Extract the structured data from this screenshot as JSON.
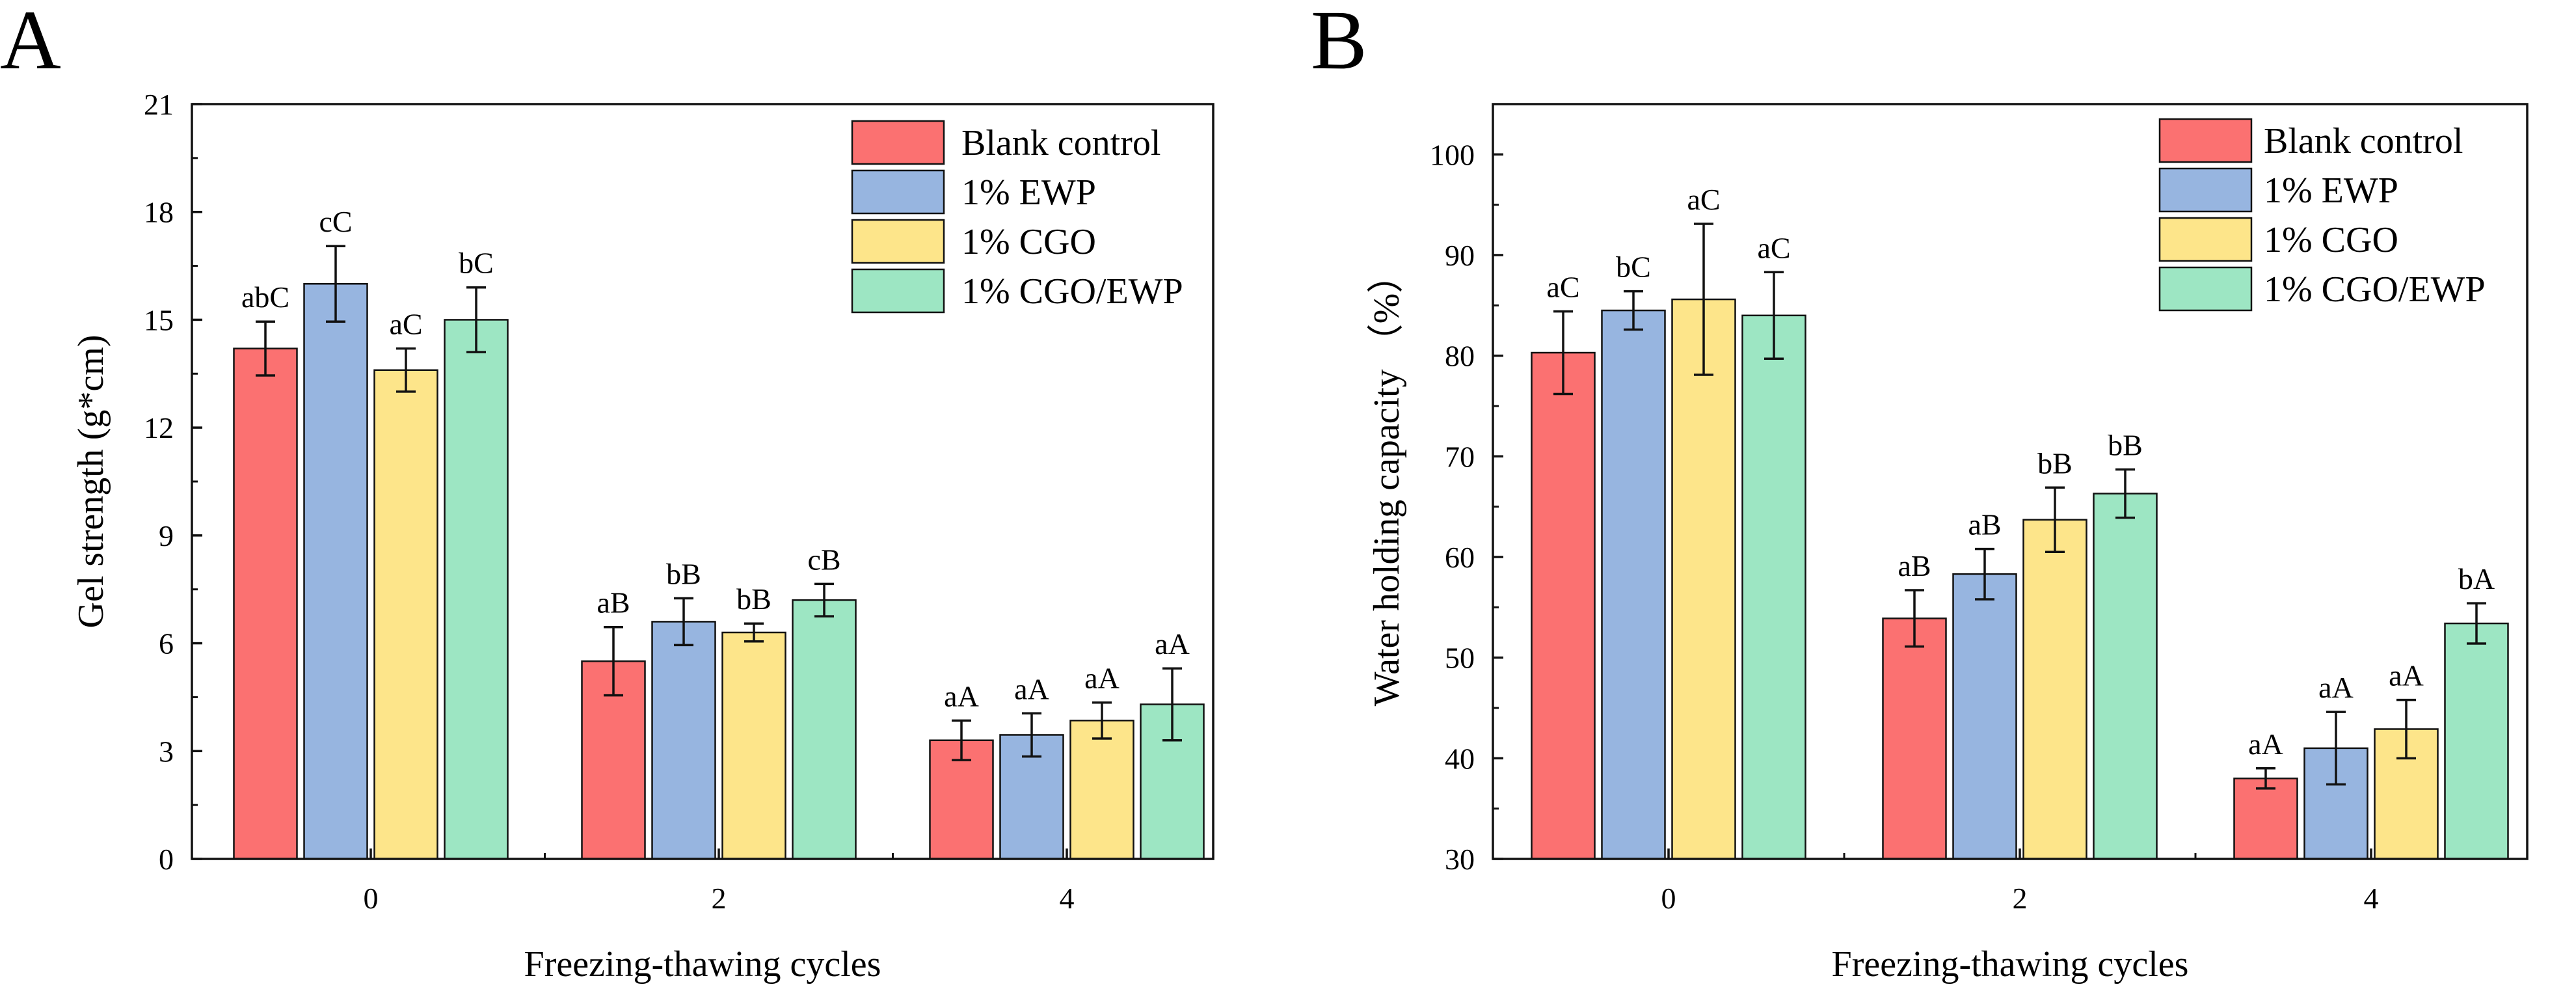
{
  "colors": {
    "Blank control": "#fb7171",
    "1% EWP": "#97b5e0",
    "1% CGO": "#fde58a",
    "1% CGO/EWP": "#9de6c3"
  },
  "chart_data": [
    {
      "panel": "A",
      "type": "bar",
      "xlabel": "Freezing-thawing cycles",
      "ylabel": "Gel strength (g*cm)",
      "categories": [
        "0",
        "2",
        "4"
      ],
      "ylim": [
        0,
        21
      ],
      "yticks": [
        0,
        3,
        6,
        9,
        12,
        15,
        18,
        21
      ],
      "legend_position": "top-right",
      "series": [
        {
          "name": "Blank control",
          "values": [
            14.2,
            5.5,
            3.3
          ],
          "errors": [
            0.75,
            0.95,
            0.55
          ],
          "labels": [
            "abC",
            "aB",
            "aA"
          ]
        },
        {
          "name": "1% EWP",
          "values": [
            16.0,
            6.6,
            3.45
          ],
          "errors": [
            1.05,
            0.65,
            0.6
          ],
          "labels": [
            "cC",
            "bB",
            "aA"
          ]
        },
        {
          "name": "1% CGO",
          "values": [
            13.6,
            6.3,
            3.85
          ],
          "errors": [
            0.6,
            0.25,
            0.5
          ],
          "labels": [
            "aC",
            "bB",
            "aA"
          ]
        },
        {
          "name": "1% CGO/EWP",
          "values": [
            15.0,
            7.2,
            4.3
          ],
          "errors": [
            0.9,
            0.45,
            1.0
          ],
          "labels": [
            "bC",
            "cB",
            "aA"
          ]
        }
      ]
    },
    {
      "panel": "B",
      "type": "bar",
      "xlabel": "Freezing-thawing cycles",
      "ylabel": "Water holding capacity （%）",
      "categories": [
        "0",
        "2",
        "4"
      ],
      "ylim": [
        30,
        105
      ],
      "yticks": [
        30,
        40,
        50,
        60,
        70,
        80,
        90,
        100
      ],
      "legend_position": "top-right",
      "series": [
        {
          "name": "Blank control",
          "values": [
            80.3,
            53.9,
            38.0
          ],
          "errors": [
            4.1,
            2.8,
            1.0
          ],
          "labels": [
            "aC",
            "aB",
            "aA"
          ]
        },
        {
          "name": "1% EWP",
          "values": [
            84.5,
            58.3,
            41.0
          ],
          "errors": [
            1.9,
            2.5,
            3.6
          ],
          "labels": [
            "bC",
            "aB",
            "aA"
          ]
        },
        {
          "name": "1% CGO",
          "values": [
            85.6,
            63.7,
            42.9
          ],
          "errors": [
            7.5,
            3.2,
            2.9
          ],
          "labels": [
            "aC",
            "bB",
            "aA"
          ]
        },
        {
          "name": "1% CGO/EWP",
          "values": [
            84.0,
            66.3,
            53.4
          ],
          "errors": [
            4.3,
            2.4,
            2.0
          ],
          "labels": [
            "aC",
            "bB",
            "bA"
          ]
        }
      ]
    }
  ]
}
